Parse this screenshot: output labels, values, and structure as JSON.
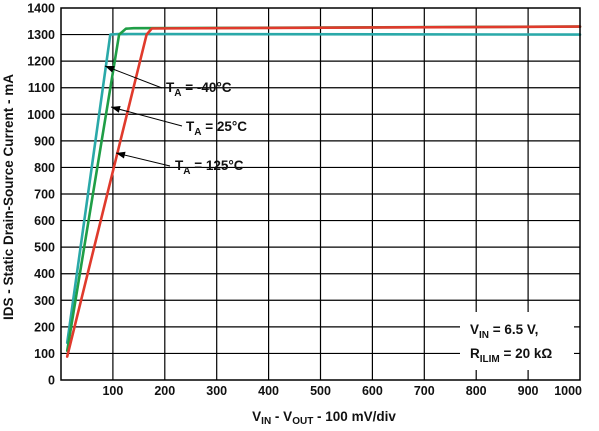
{
  "chart_data": {
    "type": "line",
    "title": "",
    "xlabel": {
      "base1": "V",
      "sub1": "IN",
      "mid": " - V",
      "sub2": "OUT",
      "tail": " - 100 mV/div"
    },
    "ylabel": "IDS - Static Drain-Source Current - mA",
    "xlim": [
      0,
      1000
    ],
    "ylim": [
      0,
      1400
    ],
    "xticks": [
      100,
      200,
      300,
      400,
      500,
      600,
      700,
      800,
      900,
      1000
    ],
    "yticks": [
      0,
      100,
      200,
      300,
      400,
      500,
      600,
      700,
      800,
      900,
      1000,
      1100,
      1200,
      1300,
      1400
    ],
    "grid": true,
    "series": [
      {
        "color": "#2aa9a9",
        "x": [
          12,
          95,
          110,
          1000
        ],
        "y": [
          140,
          1300,
          1302,
          1300
        ]
      },
      {
        "color": "#1f9e46",
        "x": [
          12,
          112,
          125,
          140,
          1000
        ],
        "y": [
          110,
          1300,
          1322,
          1324,
          1330
        ]
      },
      {
        "color": "#e03a2c",
        "x": [
          12,
          165,
          175,
          400,
          1000
        ],
        "y": [
          88,
          1300,
          1323,
          1325,
          1330
        ]
      }
    ],
    "annotations": [
      {
        "base": "T",
        "sub": "A",
        "text": " = -40°C"
      },
      {
        "base": "T",
        "sub": "A",
        "text": " = 25°C"
      },
      {
        "base": "T",
        "sub": "A",
        "text": " = 125°C"
      }
    ],
    "conditions": [
      {
        "base": "V",
        "sub": "IN",
        "text": " = 6.5 V,"
      },
      {
        "base": "R",
        "sub": "ILIM",
        "text": " = 20 kΩ"
      }
    ]
  }
}
